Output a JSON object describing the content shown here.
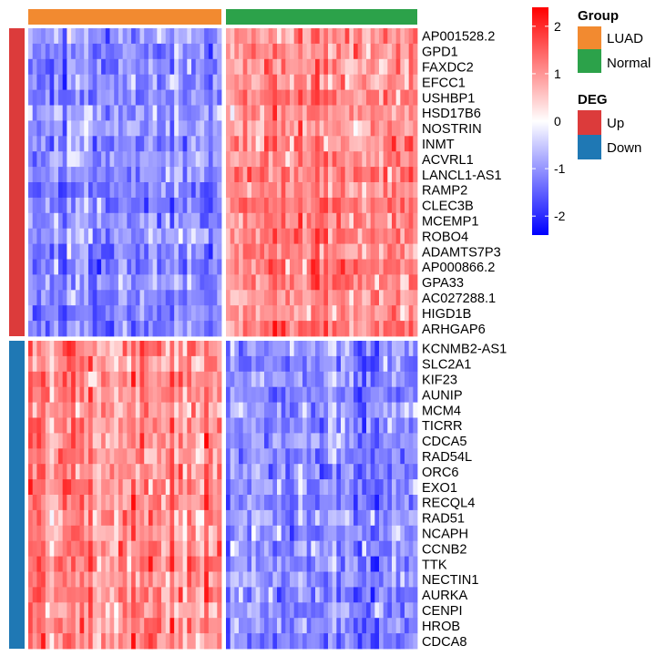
{
  "chart_data": {
    "type": "heatmap",
    "title": "",
    "xlabel": "",
    "ylabel": "",
    "column_groups": [
      {
        "name": "LUAD",
        "color": "#F28A30",
        "n_columns": 45
      },
      {
        "name": "Normal",
        "color": "#2CA24A",
        "n_columns": 45
      }
    ],
    "row_groups": [
      {
        "name": "Up",
        "color": "#DC3B3B",
        "pattern": "low-in-LUAD-high-in-Normal",
        "genes": [
          "AP001528.2",
          "GPD1",
          "FAXDC2",
          "EFCC1",
          "USHBP1",
          "HSD17B6",
          "NOSTRIN",
          "INMT",
          "ACVRL1",
          "LANCL1-AS1",
          "RAMP2",
          "CLEC3B",
          "MCEMP1",
          "ROBO4",
          "ADAMTS7P3",
          "AP000866.2",
          "GPA33",
          "AC027288.1",
          "HIGD1B",
          "ARHGAP6"
        ]
      },
      {
        "name": "Down",
        "color": "#1F78B4",
        "pattern": "high-in-LUAD-low-in-Normal",
        "genes": [
          "KCNMB2-AS1",
          "SLC2A1",
          "KIF23",
          "AUNIP",
          "MCM4",
          "TICRR",
          "CDCA5",
          "RAD54L",
          "ORC6",
          "EXO1",
          "RECQL4",
          "RAD51",
          "NCAPH",
          "CCNB2",
          "TTK",
          "NECTIN1",
          "AURKA",
          "CENPI",
          "HROB",
          "CDCA8"
        ]
      }
    ],
    "color_scale": {
      "min": -2.4,
      "max": 2.4,
      "low_color": "#0000FF",
      "mid_color": "#FFFFFF",
      "high_color": "#FF0000",
      "ticks": [
        2,
        1,
        0,
        -1,
        -2
      ],
      "tick_labels": [
        "2",
        "1",
        "0",
        "-1",
        "-2"
      ]
    },
    "typical_values": {
      "high_block": 1.1,
      "low_block": -1.1
    }
  },
  "legend": {
    "group_title": "Group",
    "group_items": [
      "LUAD",
      "Normal"
    ],
    "deg_title": "DEG",
    "deg_items": [
      "Up",
      "Down"
    ]
  }
}
